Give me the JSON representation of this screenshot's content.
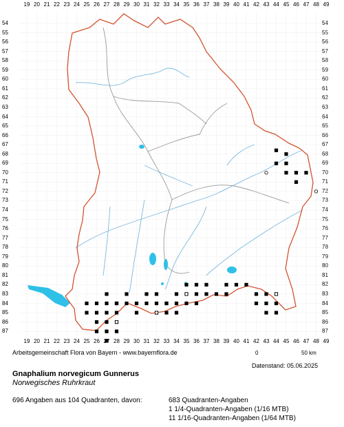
{
  "grid": {
    "columns": [
      "19",
      "20",
      "21",
      "22",
      "23",
      "24",
      "25",
      "26",
      "27",
      "28",
      "29",
      "30",
      "31",
      "32",
      "33",
      "34",
      "35",
      "36",
      "37",
      "38",
      "39",
      "40",
      "41",
      "42",
      "43",
      "44",
      "45",
      "46",
      "47",
      "48",
      "49"
    ],
    "rows": [
      "54",
      "55",
      "56",
      "57",
      "58",
      "59",
      "60",
      "61",
      "62",
      "63",
      "64",
      "65",
      "66",
      "67",
      "68",
      "69",
      "70",
      "71",
      "72",
      "73",
      "74",
      "75",
      "76",
      "77",
      "78",
      "79",
      "80",
      "81",
      "82",
      "83",
      "84",
      "85",
      "86",
      "87"
    ]
  },
  "map": {
    "colors": {
      "border": "#d2522e",
      "districts": "#9a9a9a",
      "rivers": "#7ab8e0",
      "lakes": "#2fc0e8",
      "grid": "#eeeeee"
    },
    "occurrences_filled": [
      [
        44,
        67.6
      ],
      [
        45,
        68
      ],
      [
        45,
        69
      ],
      [
        44,
        69
      ],
      [
        45,
        70
      ],
      [
        46,
        70
      ],
      [
        47,
        70
      ],
      [
        46,
        71
      ],
      [
        44,
        83
      ],
      [
        44,
        84
      ],
      [
        43,
        83
      ],
      [
        43,
        84
      ],
      [
        42,
        83
      ],
      [
        42,
        84
      ],
      [
        43,
        85
      ],
      [
        44,
        85
      ],
      [
        40,
        82
      ],
      [
        39,
        82
      ],
      [
        41,
        82
      ],
      [
        39,
        83
      ],
      [
        36,
        82
      ],
      [
        37,
        82
      ],
      [
        35,
        82
      ],
      [
        34,
        83
      ],
      [
        35,
        83
      ],
      [
        36,
        83
      ],
      [
        37,
        83
      ],
      [
        38,
        83
      ],
      [
        35,
        84
      ],
      [
        36,
        84
      ],
      [
        34,
        84
      ],
      [
        33,
        84
      ],
      [
        34,
        85
      ],
      [
        33,
        85
      ],
      [
        32,
        85
      ],
      [
        31,
        83
      ],
      [
        32,
        83
      ],
      [
        30,
        84
      ],
      [
        31,
        84
      ],
      [
        32,
        84
      ],
      [
        33,
        84
      ],
      [
        30,
        85
      ],
      [
        29,
        83
      ],
      [
        29,
        84
      ],
      [
        28,
        84
      ],
      [
        27,
        83
      ],
      [
        26,
        84
      ],
      [
        27,
        84
      ],
      [
        28,
        84
      ],
      [
        26,
        85
      ],
      [
        27,
        85
      ],
      [
        28,
        85
      ],
      [
        26,
        86
      ],
      [
        27,
        86
      ],
      [
        28,
        86
      ],
      [
        27,
        87
      ],
      [
        28,
        87
      ],
      [
        25,
        84
      ],
      [
        25,
        85
      ],
      [
        26,
        87
      ],
      [
        27,
        88
      ]
    ],
    "occurrences_open": [
      [
        43,
        70
      ],
      [
        48,
        72
      ],
      [
        44,
        83
      ],
      [
        28,
        86
      ],
      [
        32,
        85
      ],
      [
        35,
        83
      ]
    ]
  },
  "scale": {
    "zero": "0",
    "distance": "50 km"
  },
  "credit": "Arbeitsgemeinschaft Flora von Bayern - www.bayernflora.de",
  "date": "Datenstand: 05.06.2025",
  "species": {
    "name": "Gnaphalium norvegicum Gunnerus",
    "common": "Norwegisches Ruhrkraut"
  },
  "stats": {
    "total": "696 Angaben aus 104 Quadranten, davon:",
    "lines": [
      "683 Quadranten-Angaben",
      "1 1/4-Quadranten-Angaben (1/16 MTB)",
      "11 1/16-Quadranten-Angaben (1/64 MTB)"
    ]
  }
}
